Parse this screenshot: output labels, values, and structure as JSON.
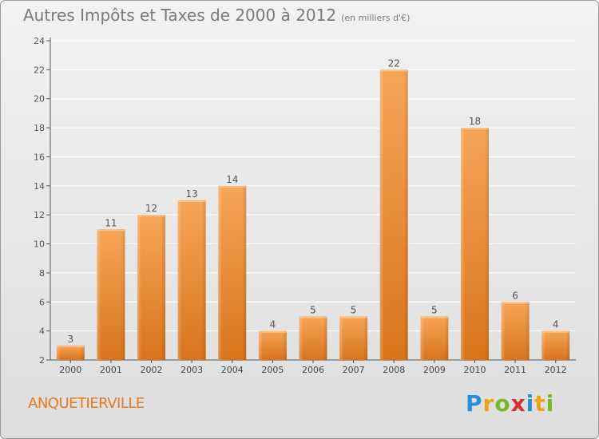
{
  "header": {
    "title": "Autres Impôts et Taxes de 2000 à 2012",
    "unit": "(en milliers d'€)"
  },
  "footer": {
    "commune": "ANQUETIERVILLE",
    "logo_text": "Proxiti"
  },
  "colors": {
    "bar_light": "#f6a657",
    "bar_dark": "#d9741c",
    "commune": "#e8791e"
  },
  "chart_data": {
    "type": "bar",
    "title": "Autres Impôts et Taxes de 2000 à 2012",
    "subtitle": "(en milliers d'€)",
    "xlabel": "",
    "ylabel": "",
    "categories": [
      "2000",
      "2001",
      "2002",
      "2003",
      "2004",
      "2005",
      "2006",
      "2007",
      "2008",
      "2009",
      "2010",
      "2011",
      "2012"
    ],
    "values": [
      3,
      11,
      12,
      13,
      14,
      4,
      5,
      5,
      22,
      5,
      18,
      6,
      4
    ],
    "ylim": [
      2,
      24
    ],
    "yticks": [
      2,
      4,
      6,
      8,
      10,
      12,
      14,
      16,
      18,
      20,
      22,
      24
    ],
    "grid": true
  }
}
